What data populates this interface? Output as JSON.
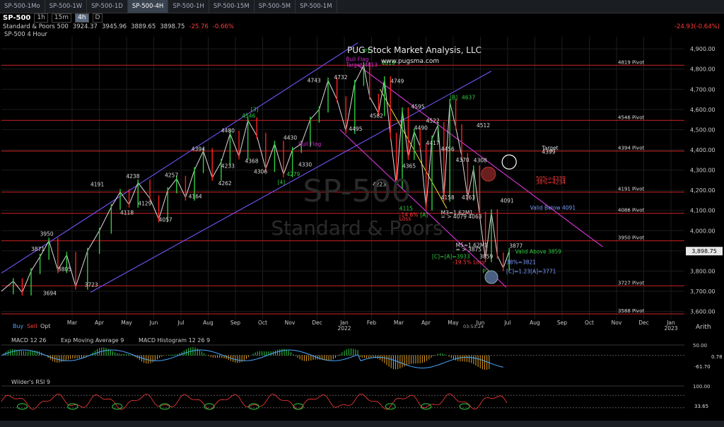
{
  "tabs": [
    "SP-500-1Mo",
    "SP-500-1W",
    "SP-500-1D",
    "SP-500-4H",
    "SP-500-1H",
    "SP-500-15M",
    "SP-500-5M",
    "SP-500-1M"
  ],
  "toolbar": {
    "symbol": "SP-500",
    "intervals": [
      "1h",
      "15m",
      "4h",
      "D"
    ]
  },
  "quote": {
    "name": "Standard & Poors 500",
    "open": "3924.37",
    "high": "3945.96",
    "low": "3889.65",
    "last": "3898.75",
    "change": "-25.76",
    "change_pct": "-0.66%",
    "right_change": "-24.93(-0.64%)"
  },
  "series_label": "SP-500 4 Hour",
  "header": {
    "title": "PUG Stock Market Analysis, LLC",
    "url": "www.pugsma.com"
  },
  "watermark": {
    "symbol": "SP-500",
    "name": "Standard & Poors"
  },
  "price_axis": {
    "current": "3,898.75"
  },
  "timestamp": "03:53:24",
  "corner": {
    "buy": "Buy",
    "sell": "Sell",
    "opt": "Opt",
    "scale": "Arith"
  },
  "colors": {
    "bullish": "#2ecc40",
    "bearish": "#ff2020",
    "channel_up": "#6b4de6",
    "channel_down": "#cc33cc",
    "pivot": "#cc2222"
  },
  "chart_data": {
    "type": "line",
    "title": "SP-500 4 Hour",
    "ylim": [
      3560,
      4960
    ],
    "y_ticks": [
      3600,
      3700,
      3800,
      3900,
      4000,
      4100,
      4200,
      4300,
      4400,
      4500,
      4600,
      4700,
      4800,
      4900
    ],
    "y_tick_labels": [
      "3,600.00",
      "3,700.00",
      "3,800.00",
      "3,900.00",
      "4,000.00",
      "4,100.00",
      "4,200.00",
      "4,300.00",
      "4,400.00",
      "4,500.00",
      "4,600.00",
      "4,700.00",
      "4,800.00",
      "4,900.00"
    ],
    "x_labels": [
      "Mar",
      "Apr",
      "May",
      "Jun",
      "Jul",
      "Aug",
      "Sep",
      "Oct",
      "Nov",
      "Dec",
      "Jan",
      "Feb",
      "Mar",
      "Apr",
      "May",
      "Jun",
      "Jul",
      "Aug",
      "Sep",
      "Oct",
      "Nov",
      "Dec",
      "Jan"
    ],
    "x_year_labels": [
      {
        "after": "Jan",
        "text": "2022"
      },
      {
        "after": "Jan",
        "text": "2023",
        "index": 22
      }
    ],
    "pivots": [
      {
        "value": 4819,
        "label": "4819 Pivot"
      },
      {
        "value": 4546,
        "label": "4546 Pivot"
      },
      {
        "value": 4394,
        "label": "4394 Pivot"
      },
      {
        "value": 4191,
        "label": "4191 Pivot"
      },
      {
        "value": 4086,
        "label": "4086 Pivot"
      },
      {
        "value": 3950,
        "label": "3950 Pivot"
      },
      {
        "value": 3727,
        "label": "3727 Pivot"
      },
      {
        "value": 3588,
        "label": "3588 Pivot"
      }
    ],
    "price_path": [
      [
        0,
        3700
      ],
      [
        8,
        3750
      ],
      [
        14,
        3694
      ],
      [
        20,
        3800
      ],
      [
        26,
        3871
      ],
      [
        32,
        3950
      ],
      [
        38,
        3805
      ],
      [
        44,
        3880
      ],
      [
        50,
        3723
      ],
      [
        58,
        3900
      ],
      [
        66,
        4000
      ],
      [
        74,
        4118
      ],
      [
        80,
        4191
      ],
      [
        86,
        4129
      ],
      [
        92,
        4238
      ],
      [
        100,
        4160
      ],
      [
        106,
        4057
      ],
      [
        112,
        4200
      ],
      [
        118,
        4257
      ],
      [
        124,
        4164
      ],
      [
        130,
        4300
      ],
      [
        136,
        4394
      ],
      [
        142,
        4262
      ],
      [
        148,
        4340
      ],
      [
        154,
        4480
      ],
      [
        160,
        4368
      ],
      [
        166,
        4546
      ],
      [
        172,
        4470
      ],
      [
        178,
        4306
      ],
      [
        184,
        4430
      ],
      [
        190,
        4279
      ],
      [
        196,
        4400
      ],
      [
        202,
        4430
      ],
      [
        208,
        4550
      ],
      [
        214,
        4600
      ],
      [
        220,
        4743
      ],
      [
        226,
        4650
      ],
      [
        232,
        4495
      ],
      [
        238,
        4732
      ],
      [
        244,
        4819
      ],
      [
        248,
        4663
      ],
      [
        254,
        4582
      ],
      [
        258,
        4749
      ],
      [
        262,
        4470
      ],
      [
        266,
        4223
      ],
      [
        270,
        4595
      ],
      [
        274,
        4365
      ],
      [
        278,
        4490
      ],
      [
        282,
        4417
      ],
      [
        286,
        4115
      ],
      [
        290,
        4456
      ],
      [
        294,
        4522
      ],
      [
        298,
        4158
      ],
      [
        302,
        4637
      ],
      [
        306,
        4512
      ],
      [
        310,
        4370
      ],
      [
        314,
        4163
      ],
      [
        318,
        4308
      ],
      [
        322,
        4079
      ],
      [
        326,
        3859
      ],
      [
        330,
        4091
      ],
      [
        334,
        3877
      ],
      [
        338,
        3815
      ],
      [
        342,
        3898
      ]
    ],
    "macd": {
      "label": "MACD 12 26",
      "ema_label": "Exp Moving Average 9",
      "hist_label": "MACD Histogram 12 26 9",
      "last_values": [
        "-61.70",
        "0.78"
      ],
      "ylim": [
        -100,
        50
      ]
    },
    "rsi": {
      "label": "Wilder's RSI 9",
      "last_value": "33.65",
      "ylim": [
        0,
        100
      ]
    },
    "annotations": [
      {
        "text": "P1",
        "x": 244,
        "y": 4880,
        "color": "#2ecc40"
      },
      {
        "text": "Bull Flag",
        "x": 232,
        "y": 4840,
        "color": "#cc33cc"
      },
      {
        "text": "Target-4813",
        "x": 232,
        "y": 4812,
        "color": "#cc33cc"
      },
      {
        "text": "4819",
        "x": 256,
        "y": 4820,
        "color": "#2ecc40"
      },
      {
        "text": "4732",
        "x": 224,
        "y": 4750,
        "color": "#ddd"
      },
      {
        "text": "4743",
        "x": 206,
        "y": 4735,
        "color": "#ddd"
      },
      {
        "text": "4749",
        "x": 262,
        "y": 4730,
        "color": "#ddd"
      },
      {
        "text": "[B]",
        "x": 302,
        "y": 4650,
        "color": "#2ecc40"
      },
      {
        "text": "4637",
        "x": 310,
        "y": 4650,
        "color": "#2ecc40"
      },
      {
        "text": "4595",
        "x": 276,
        "y": 4605,
        "color": "#ddd"
      },
      {
        "text": "4582",
        "x": 248,
        "y": 4560,
        "color": "#ddd"
      },
      {
        "text": "4522",
        "x": 286,
        "y": 4535,
        "color": "#ddd"
      },
      {
        "text": "4512",
        "x": 320,
        "y": 4512,
        "color": "#ddd"
      },
      {
        "text": "4495",
        "x": 234,
        "y": 4495,
        "color": "#ddd"
      },
      {
        "text": "4490",
        "x": 278,
        "y": 4500,
        "color": "#ddd"
      },
      {
        "text": "4480",
        "x": 148,
        "y": 4485,
        "color": "#ddd"
      },
      {
        "text": "4546",
        "x": 162,
        "y": 4560,
        "color": "#2ecc40"
      },
      {
        "text": "[3]",
        "x": 168,
        "y": 4590,
        "color": "#2ecc40"
      },
      {
        "text": "4430",
        "x": 190,
        "y": 4450,
        "color": "#ddd"
      },
      {
        "text": "4417",
        "x": 286,
        "y": 4425,
        "color": "#ddd"
      },
      {
        "text": "4456",
        "x": 296,
        "y": 4395,
        "color": "#ddd"
      },
      {
        "text": "4394",
        "x": 128,
        "y": 4395,
        "color": "#ddd"
      },
      {
        "text": "4370",
        "x": 306,
        "y": 4340,
        "color": "#ddd"
      },
      {
        "text": "4368",
        "x": 164,
        "y": 4335,
        "color": "#ddd"
      },
      {
        "text": "4365",
        "x": 270,
        "y": 4310,
        "color": "#ddd"
      },
      {
        "text": "4330",
        "x": 200,
        "y": 4318,
        "color": "#ddd"
      },
      {
        "text": "4308",
        "x": 318,
        "y": 4338,
        "color": "#ddd"
      },
      {
        "text": "4306",
        "x": 170,
        "y": 4282,
        "color": "#ddd"
      },
      {
        "text": "4279",
        "x": 192,
        "y": 4270,
        "color": "#2ecc40"
      },
      {
        "text": "[4]",
        "x": 186,
        "y": 4230,
        "color": "#2ecc40"
      },
      {
        "text": "4262",
        "x": 146,
        "y": 4225,
        "color": "#ddd"
      },
      {
        "text": "4257",
        "x": 110,
        "y": 4265,
        "color": "#ddd"
      },
      {
        "text": "4238",
        "x": 84,
        "y": 4260,
        "color": "#ddd"
      },
      {
        "text": "4233",
        "x": 148,
        "y": 4310,
        "color": "#ddd"
      },
      {
        "text": "4223",
        "x": 250,
        "y": 4220,
        "color": "#ddd"
      },
      {
        "text": "4191",
        "x": 60,
        "y": 4220,
        "color": "#ddd"
      },
      {
        "text": "4164",
        "x": 126,
        "y": 4160,
        "color": "#ddd"
      },
      {
        "text": "4163",
        "x": 310,
        "y": 4155,
        "color": "#ddd"
      },
      {
        "text": "4158",
        "x": 296,
        "y": 4155,
        "color": "#ddd"
      },
      {
        "text": "4129",
        "x": 92,
        "y": 4125,
        "color": "#ddd"
      },
      {
        "text": "4118",
        "x": 80,
        "y": 4080,
        "color": "#ddd"
      },
      {
        "text": "4115",
        "x": 268,
        "y": 4100,
        "color": "#2ecc40"
      },
      {
        "text": "[A]",
        "x": 282,
        "y": 4070,
        "color": "#2ecc40"
      },
      {
        "text": "-14.6%",
        "x": 268,
        "y": 4070,
        "color": "#ff3b3b"
      },
      {
        "text": "Loss",
        "x": 268,
        "y": 4050,
        "color": "#ff3b3b"
      },
      {
        "text": "4091",
        "x": 336,
        "y": 4140,
        "color": "#ddd"
      },
      {
        "text": "4057",
        "x": 106,
        "y": 4045,
        "color": "#ddd"
      },
      {
        "text": "M3=1.62M1",
        "x": 296,
        "y": 4080,
        "color": "#ddd"
      },
      {
        "text": "= > 4079 4063",
        "x": 296,
        "y": 4060,
        "color": "#ddd"
      },
      {
        "text": "Valid Below 4091",
        "x": 356,
        "y": 4105,
        "color": "#7a9cff"
      },
      {
        "text": "3950",
        "x": 26,
        "y": 3975,
        "color": "#ddd"
      },
      {
        "text": "3871",
        "x": 20,
        "y": 3900,
        "color": "#ddd"
      },
      {
        "text": "3877",
        "x": 342,
        "y": 3915,
        "color": "#ddd"
      },
      {
        "text": "M5=1.62M1",
        "x": 306,
        "y": 3918,
        "color": "#ddd"
      },
      {
        "text": "= > 3875",
        "x": 306,
        "y": 3898,
        "color": "#ddd"
      },
      {
        "text": "[C]=[A]=3933",
        "x": 290,
        "y": 3862,
        "color": "#2ecc40"
      },
      {
        "text": "3859",
        "x": 322,
        "y": 3862,
        "color": "#ddd"
      },
      {
        "text": "Valid Above 3859",
        "x": 346,
        "y": 3888,
        "color": "#2ecc40"
      },
      {
        "text": "-19.5% Loss",
        "x": 304,
        "y": 3835,
        "color": "#ff3b3b"
      },
      {
        "text": "38%=3821",
        "x": 340,
        "y": 3835,
        "color": "#7a9cff"
      },
      {
        "text": "[C]=1.23[A]=3771",
        "x": 340,
        "y": 3790,
        "color": "#7a9cff"
      },
      {
        "text": "P2",
        "x": 324,
        "y": 3790,
        "color": "#2ecc40"
      },
      {
        "text": "3805",
        "x": 38,
        "y": 3800,
        "color": "#ddd"
      },
      {
        "text": "3723",
        "x": 56,
        "y": 3723,
        "color": "#ddd"
      },
      {
        "text": "3694",
        "x": 28,
        "y": 3680,
        "color": "#ddd"
      },
      {
        "text": "Target",
        "x": 364,
        "y": 4400,
        "color": "#ddd"
      },
      {
        "text": "4399",
        "x": 364,
        "y": 4380,
        "color": "#ddd"
      },
      {
        "text": "50%=4339",
        "x": 360,
        "y": 4250,
        "color": "#ff3b3b"
      },
      {
        "text": "38%=4234",
        "x": 360,
        "y": 4230,
        "color": "#ff3b3b"
      },
      {
        "text": "Bull Flag",
        "x": 200,
        "y": 4420,
        "color": "#cc33cc"
      }
    ]
  }
}
